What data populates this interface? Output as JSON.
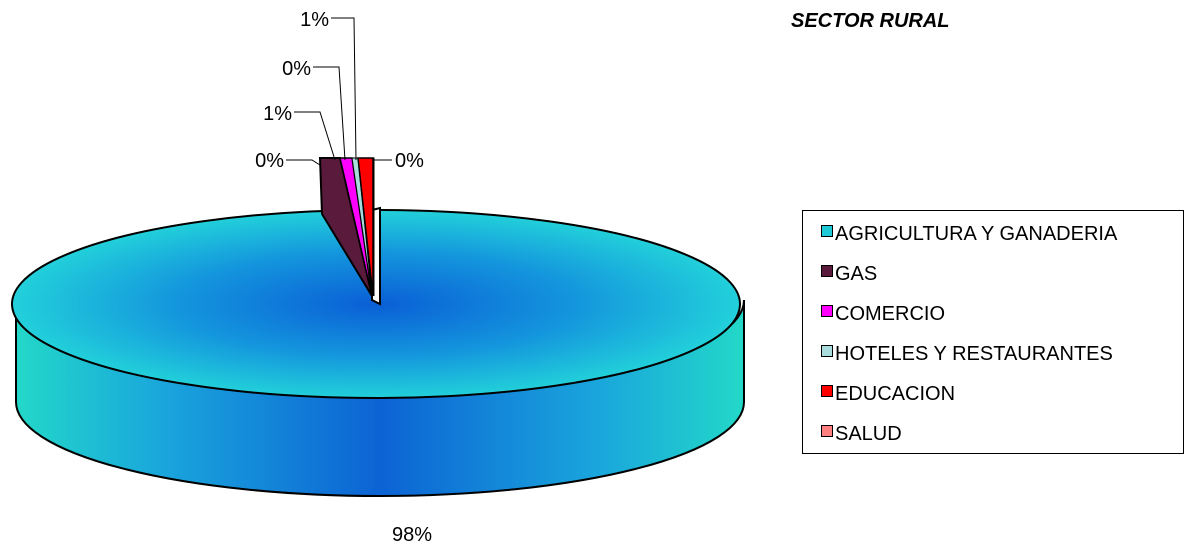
{
  "chart_data": {
    "type": "pie",
    "title": "SECTOR RURAL",
    "categories": [
      "AGRICULTURA Y GANADERIA",
      "GAS",
      "COMERCIO",
      "HOTELES Y RESTAURANTES",
      "EDUCACION",
      "SALUD"
    ],
    "labels": [
      "98%",
      "0%",
      "1%",
      "0%",
      "1%",
      "0%"
    ],
    "values": [
      98,
      0,
      1,
      0,
      1,
      0
    ],
    "colors": [
      "#1fc9d6",
      "#5a1a3c",
      "#ff00ff",
      "#a9dcdc",
      "#ff0000",
      "#ff8080"
    ],
    "legend_position": "right",
    "three_d": true
  }
}
